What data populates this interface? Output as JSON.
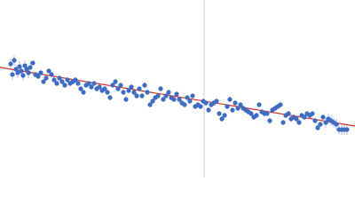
{
  "chart_data": {
    "type": "scatter",
    "xlim": [
      0,
      400
    ],
    "ylim": [
      0,
      200
    ],
    "color": "#3d6cc4",
    "error_color": "#b3c6ea",
    "x": [
      12,
      14,
      16,
      18,
      20,
      22,
      24,
      26,
      28,
      30,
      32,
      34,
      37,
      40,
      43,
      46,
      49,
      52,
      55,
      58,
      61,
      64,
      67,
      70,
      73,
      76,
      79,
      82,
      85,
      88,
      91,
      94,
      97,
      100,
      103,
      106,
      109,
      112,
      115,
      118,
      121,
      124,
      127,
      130,
      133,
      136,
      139,
      142,
      145,
      148,
      151,
      154,
      157,
      160,
      163,
      166,
      169,
      172,
      175,
      178,
      181,
      184,
      187,
      190,
      193,
      196,
      199,
      202,
      205,
      208,
      211,
      214,
      217,
      220,
      223,
      226,
      229,
      232,
      235,
      238,
      241,
      244,
      247,
      250,
      253,
      256,
      259,
      262,
      265,
      268,
      271,
      274,
      277,
      280,
      283,
      286,
      289,
      292,
      295,
      298,
      301,
      304,
      307,
      310,
      313,
      316,
      319,
      322,
      325,
      328,
      331,
      334,
      337,
      340,
      343,
      346,
      349,
      352,
      355,
      358,
      361,
      364,
      367,
      370,
      373,
      376,
      379,
      382,
      385,
      388,
      391
    ],
    "values": [
      128,
      116,
      132,
      122,
      118,
      125,
      120,
      115,
      126,
      122,
      118,
      124,
      129,
      116,
      114,
      118,
      108,
      112,
      120,
      116,
      110,
      106,
      112,
      108,
      104,
      110,
      106,
      108,
      110,
      106,
      100,
      96,
      104,
      106,
      102,
      106,
      100,
      102,
      98,
      100,
      96,
      90,
      104,
      108,
      100,
      104,
      96,
      88,
      98,
      102,
      96,
      92,
      100,
      92,
      104,
      96,
      82,
      86,
      90,
      92,
      100,
      88,
      92,
      96,
      90,
      88,
      94,
      88,
      84,
      82,
      90,
      86,
      92,
      80,
      82,
      80,
      86,
      84,
      76,
      82,
      84,
      86,
      72,
      66,
      70,
      80,
      88,
      76,
      84,
      78,
      82,
      78,
      76,
      74,
      72,
      68,
      70,
      82,
      74,
      72,
      72,
      64,
      76,
      78,
      80,
      82,
      62,
      70,
      72,
      66,
      68,
      66,
      62,
      70,
      68,
      72,
      70,
      72,
      64,
      56,
      60,
      68,
      62,
      66,
      64,
      62,
      60,
      54,
      54,
      54,
      54
    ],
    "errors": [
      6,
      6,
      6,
      6,
      6,
      6,
      6,
      6,
      6,
      6,
      6,
      6,
      3,
      3,
      3,
      3,
      3,
      3,
      3,
      3,
      3,
      3,
      3,
      3,
      3,
      3,
      3,
      3,
      3,
      3,
      3,
      3,
      3,
      3,
      3,
      3,
      3,
      3,
      3,
      3,
      3,
      3,
      3,
      3,
      3,
      3,
      3,
      3,
      3,
      3,
      3,
      3,
      3,
      3,
      3,
      3,
      3,
      3,
      3,
      3,
      3,
      3,
      3,
      3,
      3,
      3,
      3,
      3,
      3,
      3,
      3,
      3,
      3,
      3,
      3,
      3,
      3,
      3,
      3,
      3,
      3,
      3,
      3,
      3,
      3,
      3,
      3,
      3,
      3,
      3,
      3,
      3,
      3,
      3,
      3,
      3,
      3,
      3,
      3,
      3,
      3,
      3,
      3,
      3,
      3,
      3,
      3,
      3,
      3,
      3,
      3,
      3,
      3,
      3,
      3,
      3,
      3,
      3,
      3,
      3,
      3,
      3,
      6,
      6,
      6,
      6,
      6,
      6,
      6,
      6,
      6
    ],
    "fit": {
      "x": [
        0,
        400
      ],
      "y": [
        124,
        58
      ],
      "color": "#d9302c"
    },
    "vline": {
      "x": 230,
      "color": "#c5d2ec"
    }
  }
}
